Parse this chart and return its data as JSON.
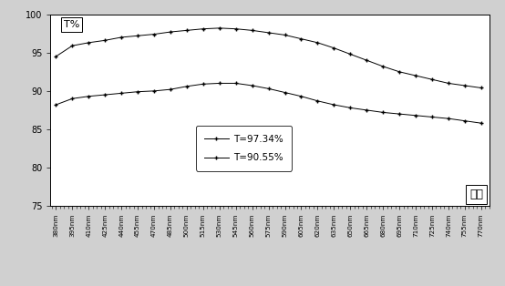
{
  "x_labels": [
    "380nm",
    "395nm",
    "410nm",
    "425nm",
    "440nm",
    "455nm",
    "470nm",
    "485nm",
    "500nm",
    "515nm",
    "530nm",
    "545nm",
    "560nm",
    "575nm",
    "590nm",
    "605nm",
    "620nm",
    "635nm",
    "650nm",
    "665nm",
    "680nm",
    "695nm",
    "710nm",
    "725nm",
    "740nm",
    "755nm",
    "770nm"
  ],
  "x_values": [
    380,
    395,
    410,
    425,
    440,
    455,
    470,
    485,
    500,
    515,
    530,
    545,
    560,
    575,
    590,
    605,
    620,
    635,
    650,
    665,
    680,
    695,
    710,
    725,
    740,
    755,
    770
  ],
  "series1_label": "T=97.34%",
  "series2_label": "T=90.55%",
  "series1_values": [
    94.5,
    95.9,
    96.3,
    96.6,
    97.0,
    97.2,
    97.4,
    97.7,
    97.9,
    98.1,
    98.2,
    98.1,
    97.9,
    97.6,
    97.3,
    96.8,
    96.3,
    95.6,
    94.8,
    94.0,
    93.2,
    92.5,
    92.0,
    91.5,
    91.0,
    90.7,
    90.4
  ],
  "series2_values": [
    88.2,
    89.0,
    89.3,
    89.5,
    89.7,
    89.9,
    90.0,
    90.2,
    90.6,
    90.9,
    91.0,
    91.0,
    90.7,
    90.3,
    89.8,
    89.3,
    88.7,
    88.2,
    87.8,
    87.5,
    87.2,
    87.0,
    86.8,
    86.6,
    86.4,
    86.1,
    85.8
  ],
  "ylabel": "T%",
  "xlabel_box": "波长",
  "ylim": [
    75,
    100
  ],
  "yticks": [
    75,
    80,
    85,
    90,
    95,
    100
  ],
  "line_color": "black",
  "marker": "+",
  "bg_color": "white",
  "outer_bg": "#d0d0d0"
}
